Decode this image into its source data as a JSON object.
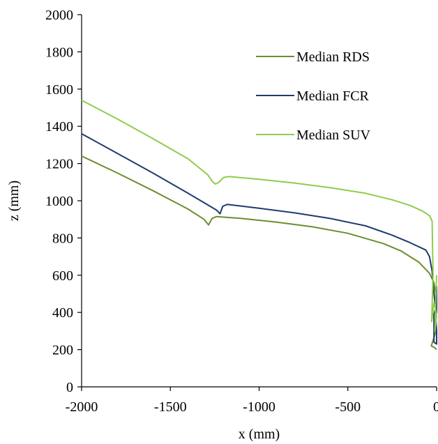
{
  "chart_data": {
    "type": "line",
    "title": "",
    "xlabel": "x (mm)",
    "ylabel": "z (mm)",
    "xlim": [
      -2000,
      0
    ],
    "ylim": [
      0,
      2000
    ],
    "x_ticks": [
      -2000,
      -1500,
      -1000,
      -500,
      0
    ],
    "y_ticks": [
      0,
      200,
      400,
      600,
      800,
      1000,
      1200,
      1400,
      1600,
      1800,
      2000
    ],
    "x_tick_labels": [
      "-2000",
      "-1500",
      "-1000",
      "-500",
      "0"
    ],
    "y_tick_labels": [
      "0",
      "200",
      "400",
      "600",
      "800",
      "1000",
      "1200",
      "1400",
      "1600",
      "1800",
      "2000"
    ],
    "grid": false,
    "legend_position": "top-right",
    "series": [
      {
        "name": "Median RDS",
        "color": "#6b8e2f",
        "points": [
          [
            -2000,
            1240
          ],
          [
            -1800,
            1150
          ],
          [
            -1600,
            1055
          ],
          [
            -1400,
            955
          ],
          [
            -1310,
            900
          ],
          [
            -1285,
            870
          ],
          [
            -1265,
            905
          ],
          [
            -1240,
            915
          ],
          [
            -1100,
            905
          ],
          [
            -900,
            885
          ],
          [
            -700,
            860
          ],
          [
            -500,
            825
          ],
          [
            -300,
            770
          ],
          [
            -200,
            730
          ],
          [
            -100,
            670
          ],
          [
            -40,
            610
          ],
          [
            -15,
            560
          ],
          [
            -5,
            500
          ],
          [
            -3,
            300
          ],
          [
            -30,
            220
          ],
          [
            -10,
            210
          ],
          [
            0,
            200
          ]
        ]
      },
      {
        "name": "Median FCR",
        "color": "#1f3a6e",
        "points": [
          [
            -2000,
            1360
          ],
          [
            -1800,
            1255
          ],
          [
            -1600,
            1150
          ],
          [
            -1400,
            1040
          ],
          [
            -1240,
            950
          ],
          [
            -1220,
            930
          ],
          [
            -1205,
            970
          ],
          [
            -1180,
            980
          ],
          [
            -1000,
            960
          ],
          [
            -800,
            935
          ],
          [
            -600,
            905
          ],
          [
            -400,
            865
          ],
          [
            -250,
            815
          ],
          [
            -150,
            775
          ],
          [
            -60,
            735
          ],
          [
            -40,
            700
          ],
          [
            -25,
            620
          ],
          [
            -15,
            500
          ],
          [
            -5,
            420
          ],
          [
            -15,
            390
          ],
          [
            -15,
            240
          ],
          [
            0,
            230
          ],
          [
            0,
            300
          ],
          [
            -5,
            380
          ],
          [
            0,
            400
          ],
          [
            0,
            540
          ]
        ]
      },
      {
        "name": "Median SUV",
        "color": "#8fcc4a",
        "points": [
          [
            -2000,
            1540
          ],
          [
            -1800,
            1440
          ],
          [
            -1600,
            1335
          ],
          [
            -1400,
            1225
          ],
          [
            -1290,
            1140
          ],
          [
            -1260,
            1100
          ],
          [
            -1245,
            1090
          ],
          [
            -1225,
            1100
          ],
          [
            -1200,
            1125
          ],
          [
            -1170,
            1130
          ],
          [
            -1000,
            1115
          ],
          [
            -800,
            1095
          ],
          [
            -600,
            1070
          ],
          [
            -400,
            1040
          ],
          [
            -250,
            1005
          ],
          [
            -150,
            975
          ],
          [
            -80,
            945
          ],
          [
            -40,
            920
          ],
          [
            -25,
            890
          ],
          [
            -22,
            700
          ],
          [
            -20,
            600
          ],
          [
            -28,
            350
          ],
          [
            -15,
            450
          ],
          [
            -5,
            420
          ],
          [
            0,
            380
          ],
          [
            -10,
            300
          ],
          [
            0,
            600
          ]
        ]
      }
    ]
  }
}
